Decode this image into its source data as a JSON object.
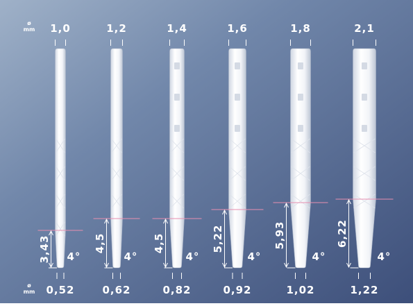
{
  "units_top": {
    "symbol": "ø",
    "unit": "mm"
  },
  "units_bottom": {
    "symbol": "ø",
    "unit": "mm"
  },
  "posts": [
    {
      "top": "1,0",
      "bottom": "0,52",
      "taper_length": "3,43",
      "angle": "4°"
    },
    {
      "top": "1,2",
      "bottom": "0,62",
      "taper_length": "4,5",
      "angle": "4°"
    },
    {
      "top": "1,4",
      "bottom": "0,82",
      "taper_length": "4,5",
      "angle": "4°"
    },
    {
      "top": "1,6",
      "bottom": "0,92",
      "taper_length": "5,22",
      "angle": "4°"
    },
    {
      "top": "1,8",
      "bottom": "1,02",
      "taper_length": "5,93",
      "angle": "4°"
    },
    {
      "top": "2,1",
      "bottom": "1,22",
      "taper_length": "6,22",
      "angle": "4°"
    }
  ]
}
